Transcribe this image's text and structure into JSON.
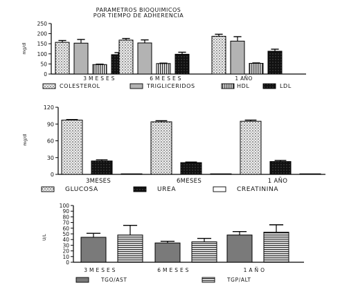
{
  "chart_data": [
    {
      "type": "bar",
      "title": "PARAMETROS BIOQUIMICOS\nPOR TIEMPO DE ADHERENCIA",
      "ylabel": "mg/dl",
      "xlabel": "",
      "ylim": [
        0,
        250
      ],
      "yticks": [
        "0",
        "50",
        "100",
        "150",
        "200",
        "250"
      ],
      "categories": [
        "3 M E S E S",
        "6 M E S E S",
        "1 AÑO"
      ],
      "legend_position": "bottom",
      "series": [
        {
          "name": "COLESTEROL",
          "values": [
            157,
            168,
            187
          ],
          "errors": [
            9,
            8,
            10
          ],
          "fill": "dots"
        },
        {
          "name": "TRIGLICERIDOS",
          "values": [
            153,
            154,
            163
          ],
          "errors": [
            18,
            15,
            22
          ],
          "fill": "#b3b3b3"
        },
        {
          "name": "HDL",
          "values": [
            47,
            52,
            53
          ],
          "errors": [
            2,
            2,
            2
          ],
          "fill": "vlines"
        },
        {
          "name": "LDL",
          "values": [
            96,
            98,
            113
          ],
          "errors": [
            10,
            10,
            10
          ],
          "fill": "dark"
        }
      ]
    },
    {
      "type": "bar",
      "title": "",
      "ylabel": "mg/dl",
      "xlabel": "",
      "ylim": [
        0,
        120
      ],
      "yticks": [
        "0",
        "30",
        "60",
        "90",
        "120"
      ],
      "categories": [
        "3MESES",
        "6MESES",
        "1 AÑO"
      ],
      "legend_position": "bottom",
      "series": [
        {
          "name": "GLUCOSA",
          "values": [
            97,
            94,
            95
          ],
          "errors": [
            1,
            2,
            2
          ],
          "fill": "dots"
        },
        {
          "name": "UREA",
          "values": [
            24,
            21,
            23
          ],
          "errors": [
            2,
            1,
            2
          ],
          "fill": "dark"
        },
        {
          "name": "CREATININA",
          "values": [
            1,
            1,
            1
          ],
          "errors": [
            0,
            0,
            0
          ],
          "fill": "#ffffff"
        }
      ]
    },
    {
      "type": "bar",
      "title": "",
      "ylabel": "U/L",
      "xlabel": "",
      "ylim": [
        0,
        100
      ],
      "yticks": [
        "0",
        "10",
        "20",
        "30",
        "40",
        "50",
        "60",
        "70",
        "80",
        "90",
        "100"
      ],
      "categories": [
        "3 M E S E S",
        "6 M E S E S",
        "1 A Ñ O"
      ],
      "legend_position": "bottom",
      "series": [
        {
          "name": "TGO/AST",
          "values": [
            44,
            34,
            48
          ],
          "errors": [
            7,
            3,
            6
          ],
          "fill": "#7a7a7a"
        },
        {
          "name": "TGP/ALT",
          "values": [
            48,
            36,
            53
          ],
          "errors": [
            17,
            6,
            13
          ],
          "fill": "hlines"
        }
      ]
    }
  ]
}
